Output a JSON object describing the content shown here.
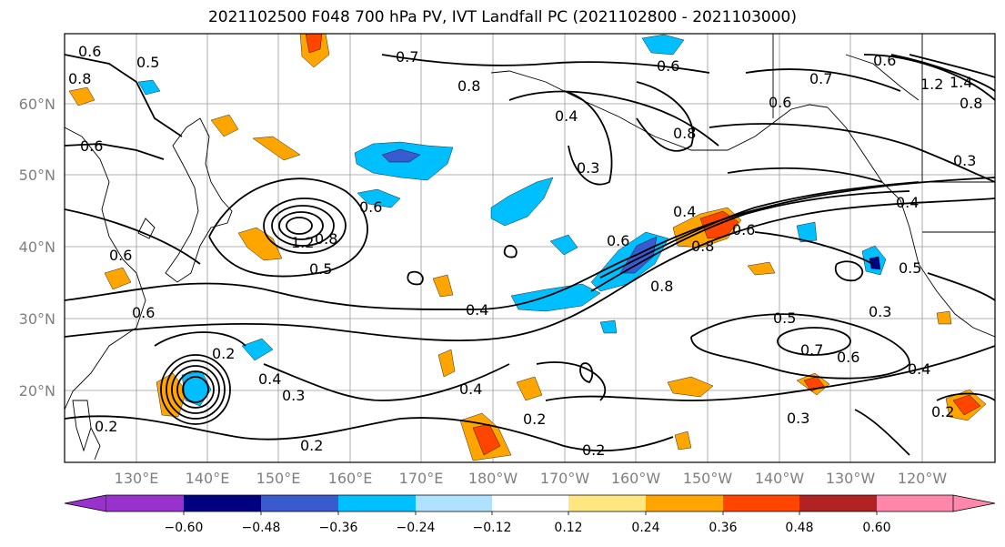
{
  "title": "2021102500 F048 700 hPa PV, IVT Landfall PC (2021102800 - 2021103000)",
  "map": {
    "lat_ticks": [
      "60°N",
      "50°N",
      "40°N",
      "30°N",
      "20°N"
    ],
    "lon_ticks": [
      "130°E",
      "140°E",
      "150°E",
      "160°E",
      "170°E",
      "180°W",
      "170°W",
      "160°W",
      "150°W",
      "140°W",
      "130°W",
      "120°W"
    ],
    "contour_labels": [
      "0.6",
      "0.5",
      "0.8",
      "0.7",
      "0.6",
      "0.4",
      "0.3",
      "0.8",
      "0.8",
      "0.6",
      "0.7",
      "1.2",
      "1.4",
      "0.8",
      "0.6",
      "0.3",
      "0.6",
      "1.2",
      "0.8",
      "0.6",
      "0.5",
      "0.4",
      "0.6",
      "0.4",
      "0.8",
      "0.6",
      "0.8",
      "0.4",
      "0.5",
      "0.7",
      "0.6",
      "0.4",
      "0.3",
      "0.2",
      "0.4",
      "0.3",
      "0.2",
      "0.2",
      "0.3",
      "0.2",
      "0.2",
      "0.4",
      "0.6",
      "0.6",
      "0.2",
      "0.5"
    ]
  },
  "colorbar": {
    "ticks": [
      "−0.60",
      "−0.48",
      "−0.36",
      "−0.24",
      "−0.12",
      "0.12",
      "0.24",
      "0.36",
      "0.48",
      "0.60"
    ],
    "colors": [
      "#9932cc",
      "#000080",
      "#3a5bcf",
      "#00bfff",
      "#b0e2ff",
      "#ffffff",
      "#ffe680",
      "#ffa500",
      "#ff4500",
      "#b22222",
      "#ff88aa"
    ]
  }
}
